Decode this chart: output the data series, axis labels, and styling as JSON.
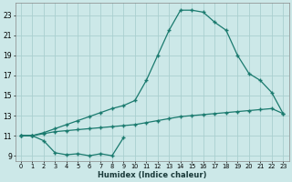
{
  "xlabel": "Humidex (Indice chaleur)",
  "bg_color": "#cce8e8",
  "line_color": "#1a7a6e",
  "grid_color": "#aacfcf",
  "ylim": [
    8.5,
    24.2
  ],
  "xlim": [
    -0.5,
    23.5
  ],
  "yticks": [
    9,
    11,
    13,
    15,
    17,
    19,
    21,
    23
  ],
  "xticks": [
    0,
    1,
    2,
    3,
    4,
    5,
    6,
    7,
    8,
    9,
    10,
    11,
    12,
    13,
    14,
    15,
    16,
    17,
    18,
    19,
    20,
    21,
    22,
    23
  ],
  "line1_x": [
    0,
    1,
    2,
    3,
    4,
    5,
    6,
    7,
    8,
    9
  ],
  "line1_y": [
    11.0,
    11.0,
    10.5,
    9.3,
    9.1,
    9.2,
    9.0,
    9.2,
    9.0,
    10.8
  ],
  "line2_x": [
    0,
    1,
    2,
    3,
    4,
    5,
    6,
    7,
    8,
    9,
    10,
    11,
    12,
    13,
    14,
    15,
    16,
    17,
    18,
    19,
    20,
    21,
    22,
    23
  ],
  "line2_y": [
    11.0,
    11.0,
    11.2,
    11.4,
    11.5,
    11.6,
    11.7,
    11.8,
    11.9,
    12.0,
    12.1,
    12.3,
    12.5,
    12.7,
    12.9,
    13.0,
    13.1,
    13.2,
    13.3,
    13.4,
    13.5,
    13.6,
    13.7,
    13.2
  ],
  "line3_x": [
    0,
    1,
    2,
    3,
    4,
    5,
    6,
    7,
    8,
    9,
    10,
    11,
    12,
    13,
    14,
    15,
    16,
    17,
    18,
    19,
    20,
    21,
    22,
    23
  ],
  "line3_y": [
    11.0,
    11.0,
    11.3,
    11.7,
    12.1,
    12.5,
    12.9,
    13.3,
    13.7,
    14.0,
    14.5,
    16.5,
    19.0,
    21.5,
    23.5,
    23.5,
    23.3,
    22.3,
    21.5,
    19.0,
    17.2,
    16.5,
    15.3,
    13.2
  ]
}
